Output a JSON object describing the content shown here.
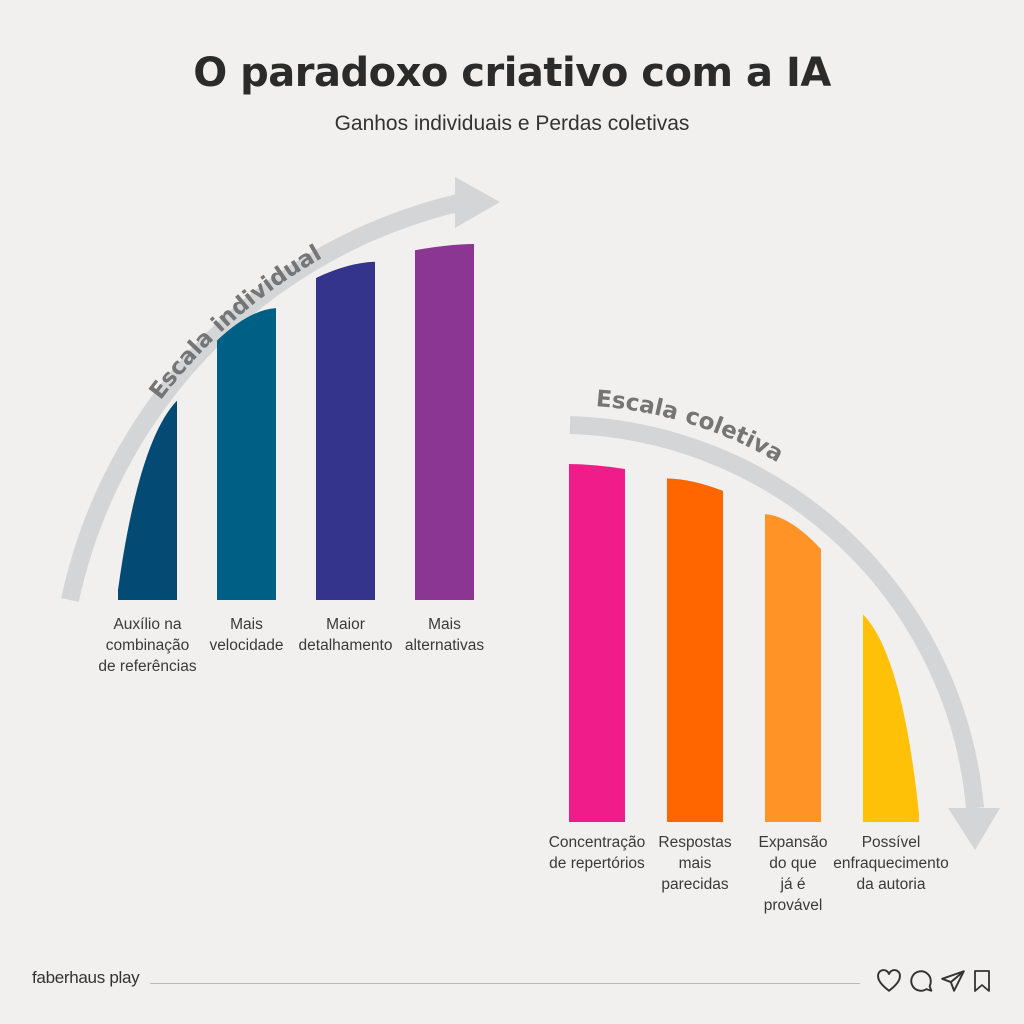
{
  "header": {
    "title": "O paradoxo criativo com a IA",
    "subtitle": "Ganhos individuais e Perdas coletivas"
  },
  "colors": {
    "background": "#f1f0ee",
    "arrow": "#d3d5d7",
    "arrow_text": "#757575"
  },
  "chart_data": [
    {
      "type": "bar",
      "arrow_label": "Escala individual",
      "direction": "rising",
      "categories": [
        "Auxílio na combinação de referências",
        "Mais velocidade",
        "Maior detalhamento",
        "Mais alternativas"
      ],
      "series": [
        {
          "values": [
            0.56,
            0.82,
            0.95,
            1.0
          ],
          "colors": [
            "#034a74",
            "#005f85",
            "#34348d",
            "#8a3692"
          ]
        }
      ]
    },
    {
      "type": "bar",
      "arrow_label": "Escala coletiva",
      "direction": "falling",
      "categories": [
        "Concentração de repertórios",
        "Respostas mais parecidas",
        "Expansão do que já é provável",
        "Possível enfraquecimento da autoria"
      ],
      "series": [
        {
          "values": [
            1.0,
            0.96,
            0.86,
            0.58
          ],
          "colors": [
            "#f01c8a",
            "#ff6600",
            "#ff9326",
            "#ffc107"
          ]
        }
      ]
    }
  ],
  "footer": {
    "brand": "faberhaus play",
    "icons": [
      "heart-icon",
      "comment-icon",
      "send-icon",
      "bookmark-icon"
    ]
  }
}
